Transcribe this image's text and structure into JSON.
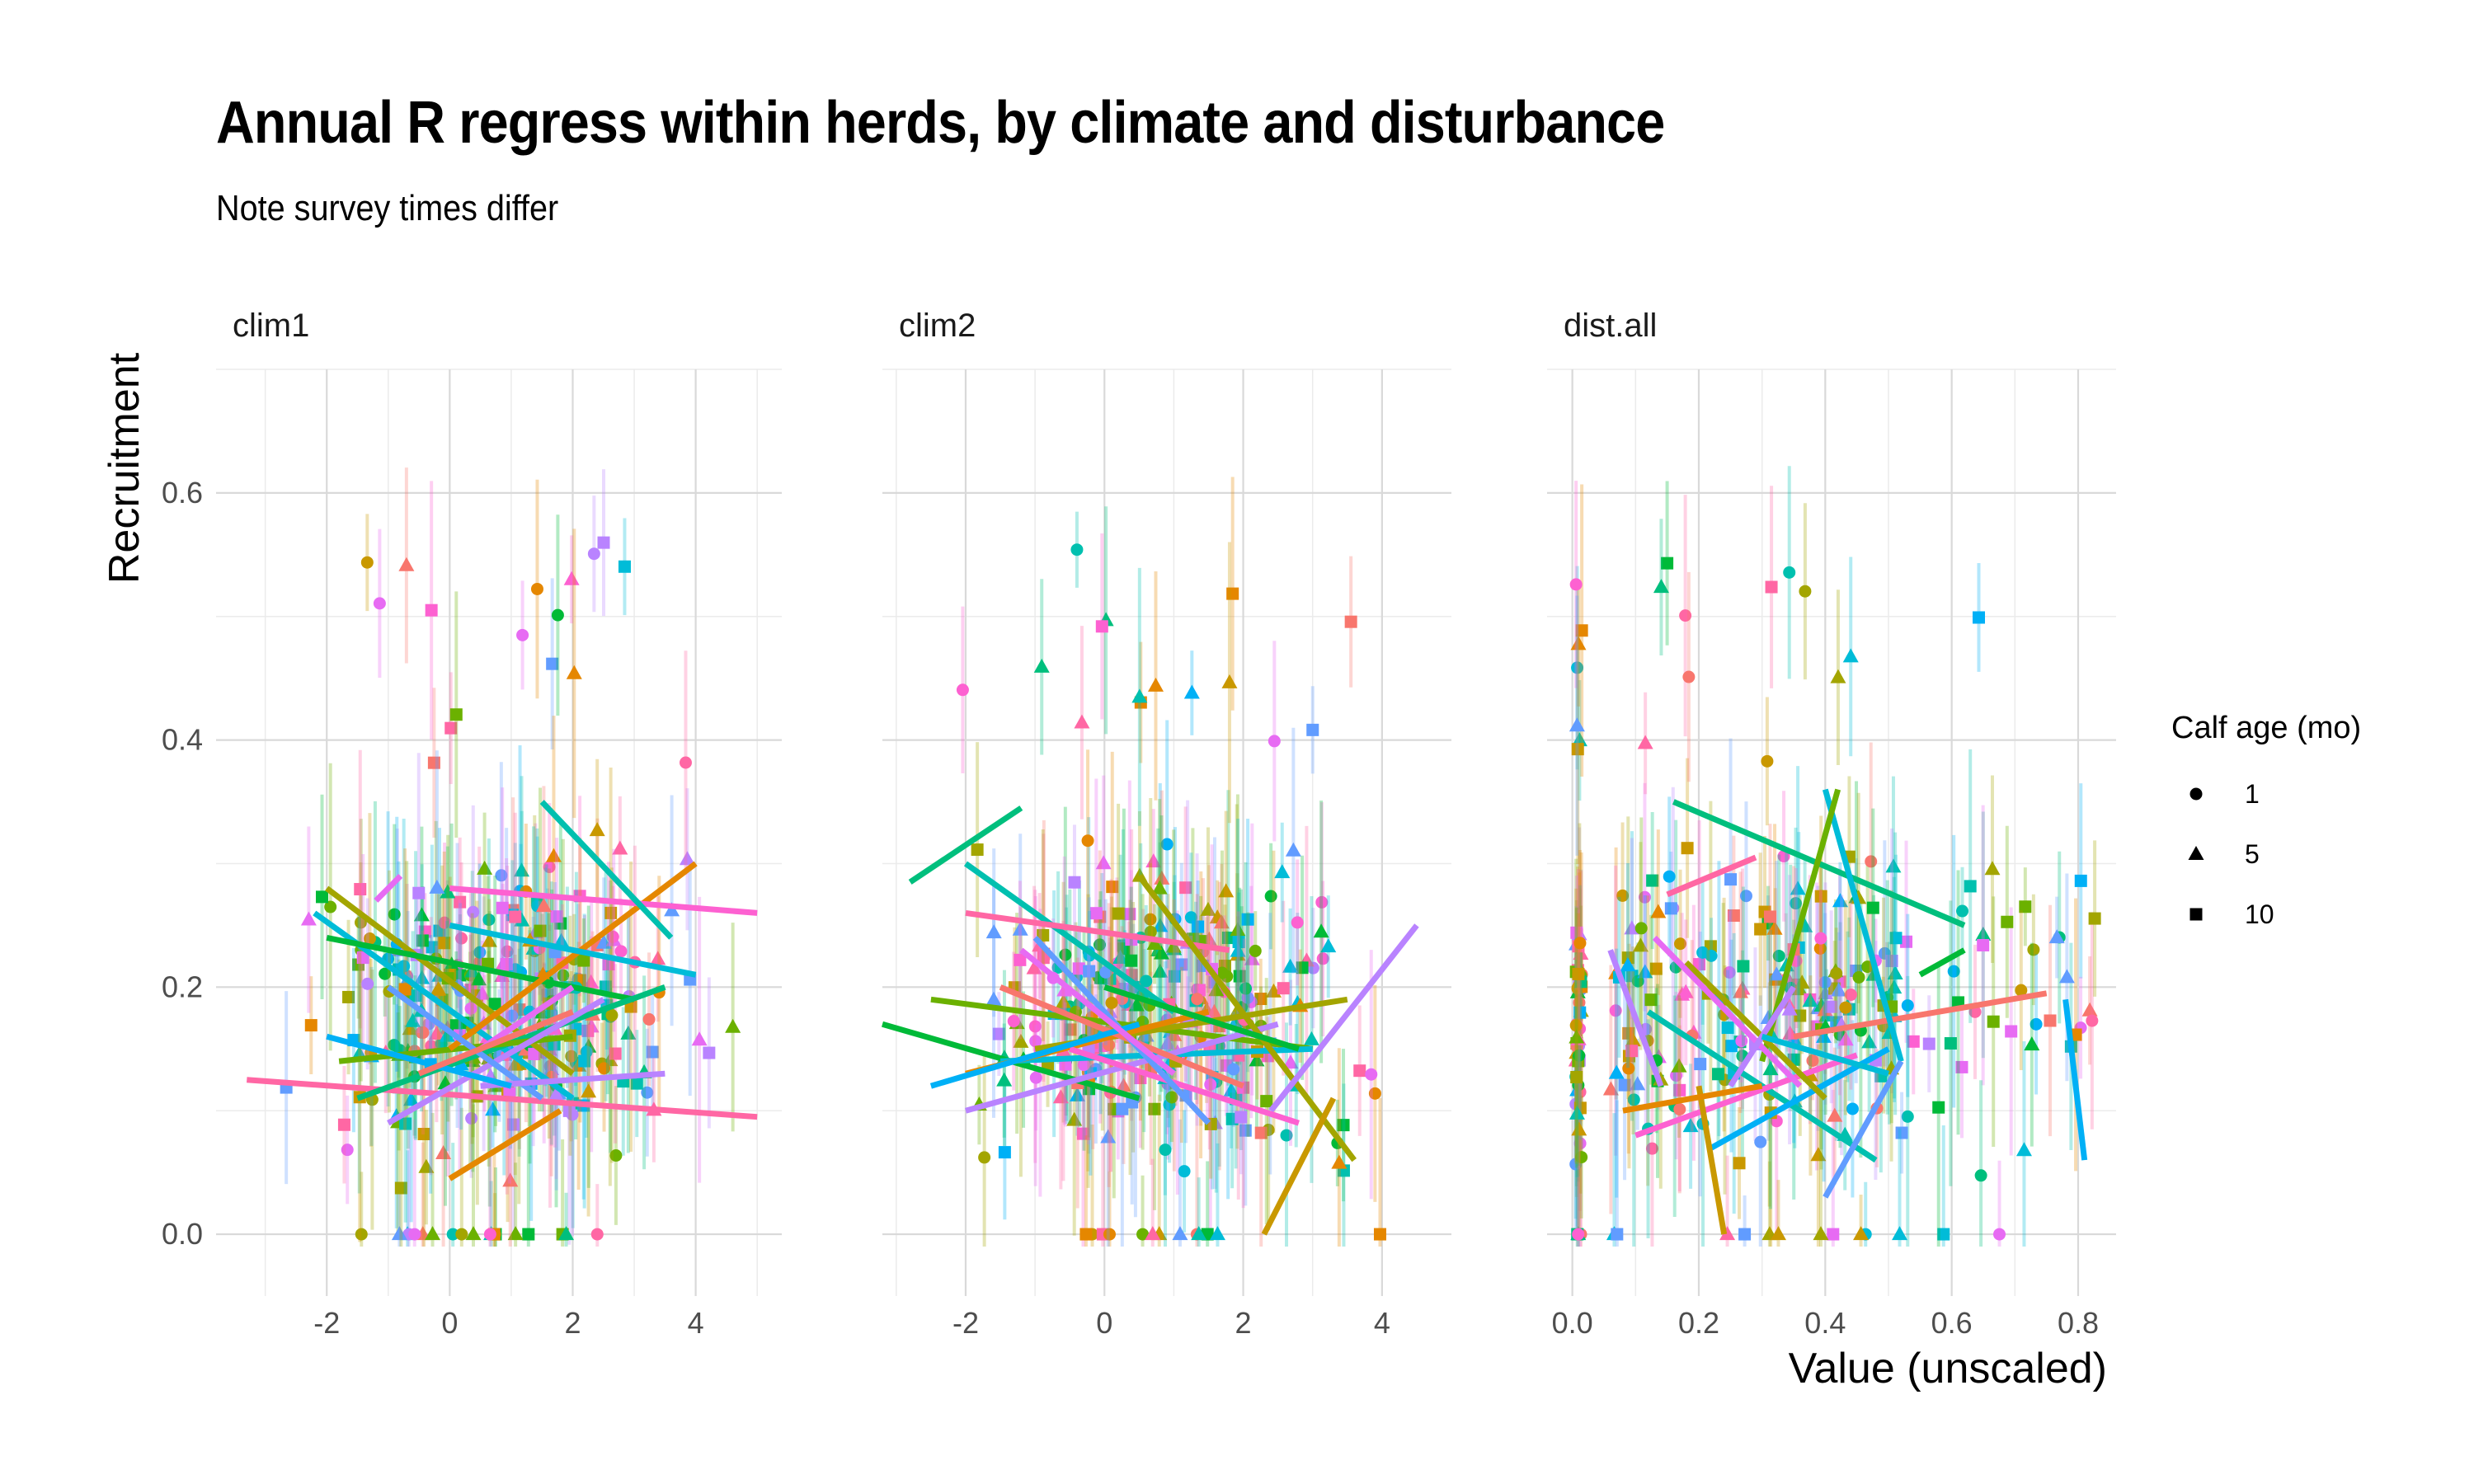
{
  "chart_data": {
    "type": "scatter",
    "title": "Annual R regress within herds, by climate and disturbance",
    "subtitle": "Note survey times differ",
    "ylabel": "Recruitment",
    "xlabel": "Value (unscaled)",
    "ylim": [
      -0.05,
      0.7
    ],
    "y_ticks": [
      "0.0",
      "0.2",
      "0.4",
      "0.6"
    ],
    "grid": true,
    "legend": {
      "title": "Calf age (mo)",
      "placement": "right",
      "entries": [
        {
          "label": "1",
          "shape": "circle"
        },
        {
          "label": "5",
          "shape": "triangle"
        },
        {
          "label": "10",
          "shape": "square"
        }
      ]
    },
    "palette": [
      "#F8766D",
      "#E58700",
      "#C99800",
      "#A3A500",
      "#6BB100",
      "#00BA38",
      "#00BF7D",
      "#00C0AF",
      "#00BCD8",
      "#00B0F6",
      "#619CFF",
      "#B983FF",
      "#E76BF3",
      "#FD61D1",
      "#FF67A4"
    ],
    "panels": [
      {
        "name": "clim1",
        "xlim": [
          -3.8,
          5.4
        ],
        "x_ticks": [
          -2,
          0,
          2,
          4
        ],
        "x_tick_labels": [
          "-2",
          "0",
          "2",
          "4"
        ],
        "lines": [
          {
            "x": [
              -3.3,
              5.0
            ],
            "y": [
              0.125,
              0.095
            ],
            "color": "#FF67A4"
          },
          {
            "x": [
              -2.0,
              2.0
            ],
            "y": [
              0.28,
              0.13
            ],
            "color": "#A3A500"
          },
          {
            "x": [
              -2.2,
              2.0
            ],
            "y": [
              0.26,
              0.11
            ],
            "color": "#00BCD8"
          },
          {
            "x": [
              -2.0,
              3.0
            ],
            "y": [
              0.24,
              0.19
            ],
            "color": "#00BA38"
          },
          {
            "x": [
              -1.5,
              3.5
            ],
            "y": [
              0.11,
              0.2
            ],
            "color": "#00BF7D"
          },
          {
            "x": [
              -1.8,
              2.0
            ],
            "y": [
              0.14,
              0.16
            ],
            "color": "#6BB100"
          },
          {
            "x": [
              -1.0,
              2.5
            ],
            "y": [
              0.09,
              0.19
            ],
            "color": "#B983FF"
          },
          {
            "x": [
              0.0,
              4.0
            ],
            "y": [
              0.15,
              0.3
            ],
            "color": "#E58700"
          },
          {
            "x": [
              0.0,
              5.0
            ],
            "y": [
              0.28,
              0.26
            ],
            "color": "#FD61D1"
          },
          {
            "x": [
              1.5,
              3.6
            ],
            "y": [
              0.35,
              0.24
            ],
            "color": "#00C0AF"
          },
          {
            "x": [
              0.0,
              4.0
            ],
            "y": [
              0.25,
              0.21
            ],
            "color": "#00BCD8"
          },
          {
            "x": [
              0.0,
              1.8
            ],
            "y": [
              0.045,
              0.1
            ],
            "color": "#E58700"
          },
          {
            "x": [
              -1.0,
              1.5
            ],
            "y": [
              0.2,
              0.11
            ],
            "color": "#619CFF"
          },
          {
            "x": [
              0.5,
              3.5
            ],
            "y": [
              0.12,
              0.13
            ],
            "color": "#B983FF"
          },
          {
            "x": [
              -1.2,
              -0.8
            ],
            "y": [
              0.27,
              0.29
            ],
            "color": "#E76BF3"
          },
          {
            "x": [
              -2.0,
              1.0
            ],
            "y": [
              0.16,
              0.12
            ],
            "color": "#00B0F6"
          },
          {
            "x": [
              0.5,
              2.0
            ],
            "y": [
              0.15,
              0.2
            ],
            "color": "#E76BF3"
          },
          {
            "x": [
              -0.5,
              2.0
            ],
            "y": [
              0.13,
              0.18
            ],
            "color": "#F8766D"
          }
        ]
      },
      {
        "name": "clim2",
        "xlim": [
          -3.2,
          5.0
        ],
        "x_ticks": [
          -2,
          0,
          2,
          4
        ],
        "x_tick_labels": [
          "-2",
          "0",
          "2",
          "4"
        ],
        "lines": [
          {
            "x": [
              -2.8,
              -1.2
            ],
            "y": [
              0.285,
              0.345
            ],
            "color": "#00BF7D"
          },
          {
            "x": [
              -3.2,
              0.5
            ],
            "y": [
              0.17,
              0.11
            ],
            "color": "#00BA38"
          },
          {
            "x": [
              -2.0,
              1.0
            ],
            "y": [
              0.3,
              0.18
            ],
            "color": "#00C0AF"
          },
          {
            "x": [
              -2.5,
              3.0
            ],
            "y": [
              0.19,
              0.15
            ],
            "color": "#6BB100"
          },
          {
            "x": [
              -2.0,
              1.8
            ],
            "y": [
              0.26,
              0.23
            ],
            "color": "#FF67A4"
          },
          {
            "x": [
              -1.5,
              3.0
            ],
            "y": [
              0.14,
              0.15
            ],
            "color": "#00BCD8"
          },
          {
            "x": [
              -2.0,
              2.5
            ],
            "y": [
              0.1,
              0.17
            ],
            "color": "#B983FF"
          },
          {
            "x": [
              -1.0,
              3.5
            ],
            "y": [
              0.15,
              0.19
            ],
            "color": "#A3A500"
          },
          {
            "x": [
              0.5,
              3.6
            ],
            "y": [
              0.29,
              0.06
            ],
            "color": "#A3A500"
          },
          {
            "x": [
              -2.0,
              1.5
            ],
            "y": [
              0.13,
              0.18
            ],
            "color": "#E58700"
          },
          {
            "x": [
              2.3,
              3.3
            ],
            "y": [
              0.0,
              0.11
            ],
            "color": "#C99800"
          },
          {
            "x": [
              2.4,
              4.5
            ],
            "y": [
              0.1,
              0.25
            ],
            "color": "#B983FF"
          },
          {
            "x": [
              -1.5,
              2.0
            ],
            "y": [
              0.2,
              0.12
            ],
            "color": "#F8766D"
          },
          {
            "x": [
              -0.5,
              2.8
            ],
            "y": [
              0.15,
              0.09
            ],
            "color": "#FD61D1"
          },
          {
            "x": [
              -1.0,
              1.5
            ],
            "y": [
              0.24,
              0.09
            ],
            "color": "#619CFF"
          },
          {
            "x": [
              -2.5,
              0.5
            ],
            "y": [
              0.12,
              0.17
            ],
            "color": "#00B0F6"
          },
          {
            "x": [
              0.0,
              2.8
            ],
            "y": [
              0.2,
              0.15
            ],
            "color": "#00BA38"
          },
          {
            "x": [
              -1.2,
              1.0
            ],
            "y": [
              0.23,
              0.13
            ],
            "color": "#E76BF3"
          }
        ]
      },
      {
        "name": "dist.all",
        "xlim": [
          -0.04,
          0.86
        ],
        "x_ticks": [
          0.0,
          0.2,
          0.4,
          0.6,
          0.8
        ],
        "x_tick_labels": [
          "0.0",
          "0.2",
          "0.4",
          "0.6",
          "0.8"
        ],
        "lines": [
          {
            "x": [
              0.16,
              0.62
            ],
            "y": [
              0.35,
              0.25
            ],
            "color": "#00BF7D"
          },
          {
            "x": [
              0.35,
              0.75
            ],
            "y": [
              0.16,
              0.195
            ],
            "color": "#F8766D"
          },
          {
            "x": [
              0.4,
              0.52
            ],
            "y": [
              0.36,
              0.14
            ],
            "color": "#00BCD8"
          },
          {
            "x": [
              0.3,
              0.42
            ],
            "y": [
              0.14,
              0.36
            ],
            "color": "#6BB100"
          },
          {
            "x": [
              0.15,
              0.29
            ],
            "y": [
              0.275,
              0.305
            ],
            "color": "#FF67A4"
          },
          {
            "x": [
              0.12,
              0.48
            ],
            "y": [
              0.18,
              0.06
            ],
            "color": "#00C0AF"
          },
          {
            "x": [
              0.1,
              0.45
            ],
            "y": [
              0.08,
              0.145
            ],
            "color": "#FD61D1"
          },
          {
            "x": [
              0.06,
              0.14
            ],
            "y": [
              0.23,
              0.12
            ],
            "color": "#B983FF"
          },
          {
            "x": [
              0.78,
              0.81
            ],
            "y": [
              0.19,
              0.06
            ],
            "color": "#00B0F6"
          },
          {
            "x": [
              0.55,
              0.62
            ],
            "y": [
              0.21,
              0.23
            ],
            "color": "#00BA38"
          },
          {
            "x": [
              0.22,
              0.5
            ],
            "y": [
              0.07,
              0.15
            ],
            "color": "#00B0F6"
          },
          {
            "x": [
              0.18,
              0.4
            ],
            "y": [
              0.22,
              0.11
            ],
            "color": "#A3A500"
          },
          {
            "x": [
              0.2,
              0.24
            ],
            "y": [
              0.12,
              0.0
            ],
            "color": "#C99800"
          },
          {
            "x": [
              0.4,
              0.52
            ],
            "y": [
              0.03,
              0.14
            ],
            "color": "#619CFF"
          },
          {
            "x": [
              0.13,
              0.36
            ],
            "y": [
              0.24,
              0.12
            ],
            "color": "#E76BF3"
          },
          {
            "x": [
              0.08,
              0.3
            ],
            "y": [
              0.1,
              0.12
            ],
            "color": "#E58700"
          },
          {
            "x": [
              0.25,
              0.35
            ],
            "y": [
              0.12,
              0.2
            ],
            "color": "#B983FF"
          },
          {
            "x": [
              0.3,
              0.5
            ],
            "y": [
              0.16,
              0.13
            ],
            "color": "#00BCD8"
          }
        ]
      }
    ]
  }
}
